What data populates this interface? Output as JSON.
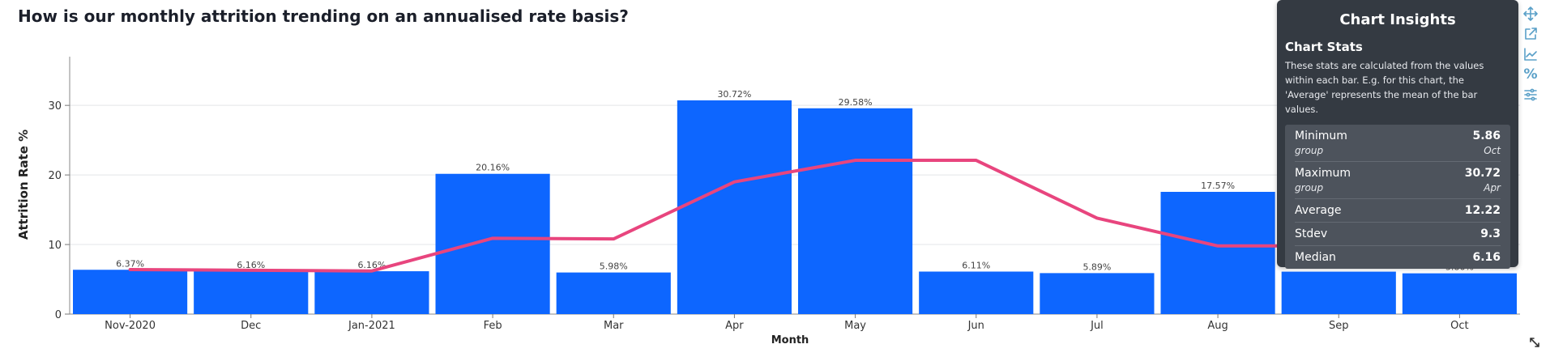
{
  "title": "How is our monthly attrition trending on an annualised rate basis?",
  "chart_data": {
    "type": "bar",
    "categories": [
      "Nov-2020",
      "Dec",
      "Jan-2021",
      "Feb",
      "Mar",
      "Apr",
      "May",
      "Jun",
      "Jul",
      "Aug",
      "Sep",
      "Oct"
    ],
    "values": [
      6.37,
      6.16,
      6.16,
      20.16,
      5.98,
      30.72,
      29.58,
      6.11,
      5.89,
      17.57,
      6.1,
      5.86
    ],
    "bar_labels": [
      "6.37%",
      "6.16%",
      "6.16%",
      "20.16%",
      "5.98%",
      "30.72%",
      "29.58%",
      "6.11%",
      "5.89%",
      "17.57%",
      "",
      "5.86%"
    ],
    "trend_line": [
      6.4,
      6.3,
      6.2,
      10.9,
      10.8,
      19.0,
      22.1,
      22.1,
      13.8,
      9.8,
      9.8,
      9.8
    ],
    "xlabel": "Month",
    "ylabel": "Attrition Rate %",
    "ylim": [
      0,
      37
    ],
    "yticks": [
      0,
      10,
      20,
      30
    ],
    "grid": true,
    "colors": {
      "bar": "#0d66ff",
      "line": "#e8457e"
    }
  },
  "insights": {
    "title": "Chart Insights",
    "stats_heading": "Chart Stats",
    "description": "These stats are calculated from the values within each bar. E.g. for this chart, the 'Average' represents the mean of the bar values.",
    "stats": [
      {
        "name": "Minimum",
        "value": "5.86",
        "sub_label": "group",
        "sub_value": "Oct"
      },
      {
        "name": "Maximum",
        "value": "30.72",
        "sub_label": "group",
        "sub_value": "Apr"
      },
      {
        "name": "Average",
        "value": "12.22"
      },
      {
        "name": "Stdev",
        "value": "9.3"
      },
      {
        "name": "Median",
        "value": "6.16"
      }
    ]
  },
  "toolbar": {
    "icons": [
      "move-icon",
      "external-link-icon",
      "trend-chart-icon",
      "percent-icon",
      "sliders-icon"
    ],
    "percent_glyph": "%"
  }
}
